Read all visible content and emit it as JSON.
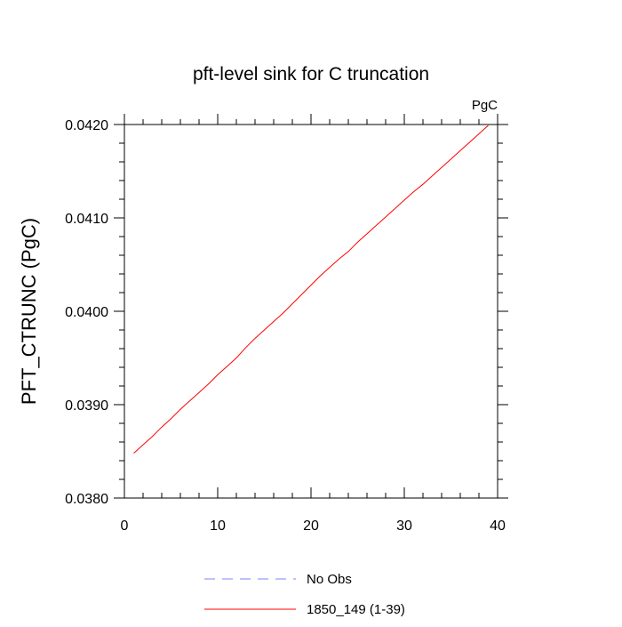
{
  "chart_data": {
    "type": "line",
    "title": "pft-level sink for C truncation",
    "units_label": "PgC",
    "ylabel": "PFT_CTRUNC  (PgC)",
    "xlabel": "",
    "xlim": [
      0,
      40
    ],
    "ylim": [
      0.038,
      0.042
    ],
    "x_ticks": [
      0,
      10,
      20,
      30,
      40
    ],
    "y_ticks": [
      0.038,
      0.039,
      0.04,
      0.041,
      0.042
    ],
    "y_tick_labels": [
      "0.0380",
      "0.0390",
      "0.0400",
      "0.0410",
      "0.0420"
    ],
    "grid": false,
    "legend_position": "bottom",
    "series": [
      {
        "name": "No Obs",
        "color": "#8080ff",
        "dash": "dashed",
        "x": [],
        "y": []
      },
      {
        "name": "1850_149 (1-39)",
        "color": "#ff0000",
        "dash": "solid",
        "x": [
          1,
          2,
          3,
          4,
          5,
          6,
          7,
          8,
          9,
          10,
          11,
          12,
          13,
          14,
          15,
          16,
          17,
          18,
          19,
          20,
          21,
          22,
          23,
          24,
          25,
          26,
          27,
          28,
          29,
          30,
          31,
          32,
          33,
          34,
          35,
          36,
          37,
          38,
          39
        ],
        "y": [
          0.03848,
          0.03857,
          0.03866,
          0.03876,
          0.03885,
          0.03895,
          0.03904,
          0.03913,
          0.03922,
          0.03932,
          0.03941,
          0.0395,
          0.03961,
          0.03971,
          0.0398,
          0.03989,
          0.03998,
          0.04008,
          0.04018,
          0.04028,
          0.04038,
          0.04047,
          0.04056,
          0.04064,
          0.04074,
          0.04083,
          0.04092,
          0.04101,
          0.0411,
          0.04119,
          0.04128,
          0.04136,
          0.04145,
          0.04154,
          0.04163,
          0.04172,
          0.04181,
          0.0419,
          0.04199
        ]
      }
    ]
  }
}
